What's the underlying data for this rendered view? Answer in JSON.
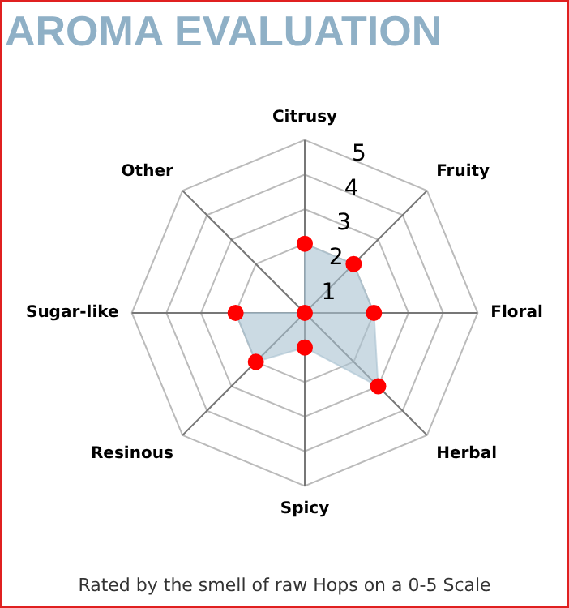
{
  "chart_data": {
    "type": "radar",
    "title": "AROMA EVALUATION",
    "categories": [
      "Citrusy",
      "Fruity",
      "Floral",
      "Herbal",
      "Spicy",
      "Resinous",
      "Sugar-like",
      "Other"
    ],
    "series": [
      {
        "color": "#a9c1d1",
        "colors": [
          "#ff0000",
          "#ff0000",
          "#ff0000",
          "#ff0000",
          "#ff0000",
          "#ff0000",
          "#ff0000",
          "#ff0000"
        ],
        "values": [
          2,
          2,
          2,
          3,
          1,
          2,
          2,
          0
        ]
      }
    ],
    "ylim": [
      0,
      5
    ],
    "yticks": [
      1,
      2,
      3,
      4,
      5
    ],
    "grid": true,
    "legend": false,
    "marker": "circle",
    "annotations": [
      "Rated by the smell of raw Hops on a 0-5 Scale"
    ]
  }
}
